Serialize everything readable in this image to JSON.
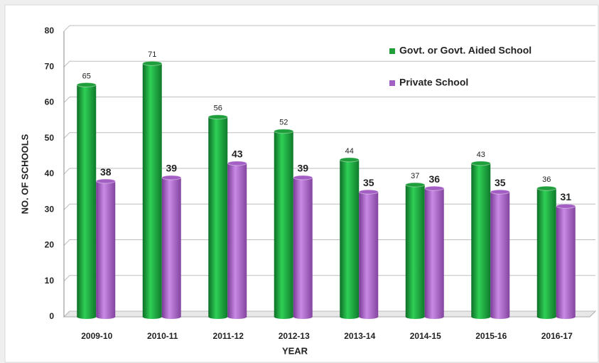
{
  "chart_data": {
    "type": "bar",
    "categories": [
      "2009-10",
      "2010-11",
      "2011-12",
      "2012-13",
      "2013-14",
      "2014-15",
      "2015-16",
      "2016-17"
    ],
    "series": [
      {
        "name": "Govt. or Govt. Aided School",
        "color": "#1f9e3c",
        "values": [
          65,
          71,
          56,
          52,
          44,
          37,
          43,
          36
        ]
      },
      {
        "name": "Private School",
        "color": "#a45fc4",
        "values": [
          38,
          39,
          43,
          39,
          35,
          36,
          35,
          31
        ]
      }
    ],
    "xlabel": "YEAR",
    "ylabel": "NO. OF SCHOOLS",
    "ylim": [
      0,
      80
    ],
    "yticks": [
      0,
      10,
      20,
      30,
      40,
      50,
      60,
      70,
      80
    ],
    "grid": true,
    "legend": "top-right"
  }
}
